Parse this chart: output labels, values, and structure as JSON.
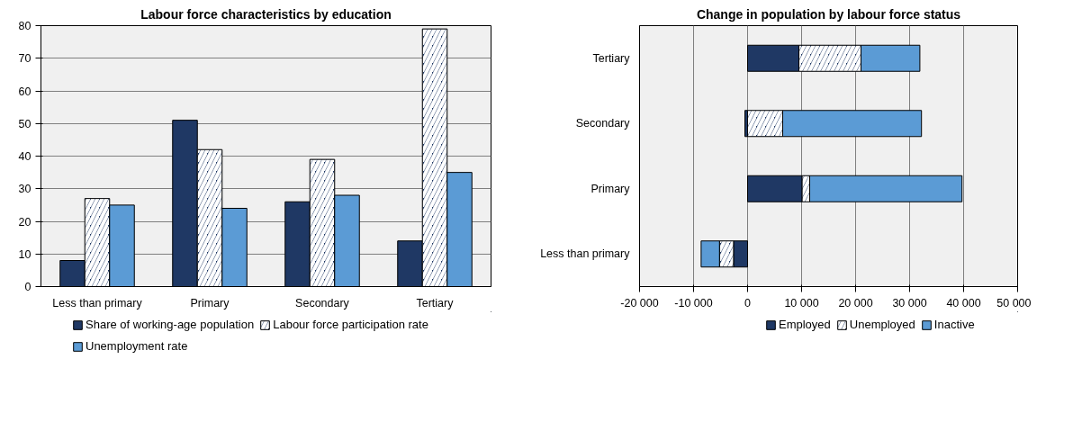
{
  "chart_data": [
    {
      "type": "bar",
      "title": "Labour force characteristics by education",
      "categories": [
        "Less than primary",
        "Primary",
        "Secondary",
        "Tertiary"
      ],
      "series": [
        {
          "name": "Share of working-age population",
          "color": "#1f3864",
          "values": [
            8,
            51,
            26,
            14
          ]
        },
        {
          "name": "Labour force participation rate",
          "color": "#1f3864",
          "values": [
            27,
            42,
            39,
            79
          ]
        },
        {
          "name": "Unemployment rate",
          "color": "#5b9bd5",
          "values": [
            25,
            24,
            28,
            35
          ]
        }
      ],
      "ylim": [
        0,
        80
      ],
      "yticks": [
        0,
        10,
        20,
        30,
        40,
        50,
        60,
        70,
        80
      ],
      "grid": "y",
      "legend": "bottom"
    },
    {
      "type": "bar",
      "title": "Change in population by labour force status",
      "orientation": "horizontal",
      "stacked": true,
      "categories": [
        "Tertiary",
        "Secondary",
        "Primary",
        "Less than primary"
      ],
      "series": [
        {
          "name": "Employed",
          "color": "#1f3864",
          "values": [
            9500,
            -500,
            10100,
            -2600
          ]
        },
        {
          "name": "Unemployed",
          "color": "#1f3864",
          "values": [
            11500,
            6500,
            1400,
            -2600
          ]
        },
        {
          "name": "Inactive",
          "color": "#5b9bd5",
          "values": [
            10900,
            25700,
            28200,
            -3400
          ]
        }
      ],
      "xlim": [
        -20000,
        50000
      ],
      "xticks": [
        {
          "value": -20000,
          "label": "-20 000"
        },
        {
          "value": -10000,
          "label": "-10 000"
        },
        0,
        {
          "value": 10000,
          "label": "10 000"
        },
        {
          "value": 20000,
          "label": "20 000"
        },
        {
          "value": 30000,
          "label": "30 000"
        },
        {
          "value": 40000,
          "label": "40 000"
        },
        {
          "value": 50000,
          "label": "50 000"
        }
      ],
      "grid": "x",
      "legend": "bottom"
    }
  ]
}
